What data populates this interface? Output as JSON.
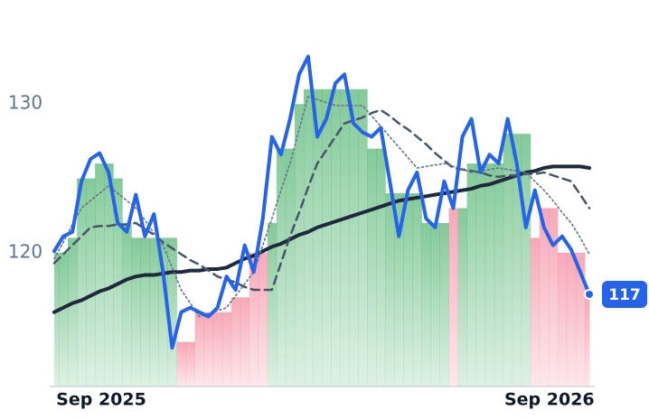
{
  "chart_data": {
    "type": "line",
    "categories": [
      "Sep 2025",
      null,
      null,
      null,
      null,
      null,
      null,
      null,
      null,
      null,
      null,
      null,
      null,
      null,
      null,
      null,
      null,
      null,
      null,
      null,
      null,
      null,
      null,
      null,
      null,
      null,
      null,
      null,
      null,
      null,
      null,
      null,
      null,
      null,
      null,
      null,
      null,
      null,
      null,
      null,
      null,
      null,
      null,
      null,
      null,
      null,
      null,
      null,
      null,
      null,
      null,
      null,
      null,
      null,
      "Sep 2026",
      null,
      null,
      null,
      null,
      null
    ],
    "ylim": [
      111,
      137
    ],
    "yticks": [
      120,
      130
    ],
    "bars": [
      {
        "color": "#5bb878",
        "values": [
          120,
          120,
          121,
          125,
          125,
          126,
          126,
          125,
          122,
          121,
          121,
          121,
          121,
          121,
          null,
          null,
          null,
          null,
          null,
          null,
          null,
          null,
          null,
          null,
          122,
          127,
          127,
          130,
          131,
          131,
          131,
          131,
          131,
          131,
          131,
          127,
          127,
          124,
          124,
          124,
          124,
          122,
          122,
          122,
          null,
          123,
          126,
          126,
          126,
          126,
          128,
          128,
          128,
          null,
          null,
          null,
          null,
          null,
          null,
          null
        ]
      },
      {
        "color": "#f48ca0",
        "values": [
          null,
          null,
          null,
          null,
          null,
          null,
          null,
          null,
          null,
          null,
          null,
          null,
          null,
          null,
          114,
          114,
          116,
          116,
          116,
          116,
          117,
          117,
          120,
          120,
          null,
          null,
          null,
          null,
          null,
          null,
          null,
          null,
          null,
          null,
          null,
          null,
          null,
          null,
          null,
          null,
          null,
          null,
          null,
          null,
          123,
          null,
          null,
          null,
          null,
          null,
          null,
          null,
          null,
          121,
          123,
          123,
          120,
          120,
          120,
          117
        ]
      }
    ],
    "series": [
      {
        "color": "#1e293b",
        "style": "solid",
        "width": 4,
        "values": [
          116.0,
          116.3,
          116.6,
          116.8,
          117.1,
          117.4,
          117.6,
          117.9,
          118.2,
          118.4,
          118.5,
          118.5,
          118.6,
          118.7,
          118.7,
          118.8,
          118.8,
          118.9,
          118.9,
          119.0,
          119.3,
          119.6,
          119.8,
          120.1,
          120.4,
          120.6,
          120.9,
          121.2,
          121.4,
          121.7,
          121.9,
          122.1,
          122.3,
          122.5,
          122.7,
          122.9,
          123.1,
          123.3,
          123.5,
          123.6,
          123.7,
          123.8,
          123.9,
          124.0,
          124.1,
          124.2,
          124.3,
          124.5,
          124.6,
          124.8,
          125.0,
          125.2,
          125.4,
          125.5,
          125.7,
          125.8,
          125.8,
          125.8,
          125.8,
          125.7
        ]
      },
      {
        "color": "#475569",
        "style": "dashed",
        "width": 2.5,
        "values": [
          119.3,
          119.9,
          120.5,
          121.1,
          121.7,
          121.8,
          121.8,
          121.9,
          121.9,
          122.0,
          121.6,
          121.2,
          120.7,
          120.3,
          119.9,
          119.5,
          119.2,
          118.8,
          118.4,
          118.2,
          118.0,
          117.7,
          117.5,
          117.5,
          117.5,
          119.3,
          121.1,
          122.7,
          124.4,
          126.0,
          126.9,
          127.8,
          128.7,
          128.9,
          129.1,
          129.4,
          129.6,
          129.2,
          128.7,
          128.3,
          127.8,
          127.3,
          126.7,
          126.2,
          125.7,
          125.6,
          125.5,
          125.4,
          125.2,
          125.1,
          125.2,
          125.2,
          125.3,
          125.3,
          125.4,
          125.2,
          125.0,
          124.8,
          123.9,
          123.0
        ]
      },
      {
        "color": "#64748b",
        "style": "dotted",
        "width": 1.6,
        "values": [
          119.6,
          120.7,
          121.9,
          123.0,
          123.5,
          124.0,
          124.5,
          124.0,
          123.5,
          123.0,
          122.2,
          121.3,
          120.5,
          119.0,
          117.5,
          116.6,
          115.7,
          115.9,
          116.1,
          116.3,
          117.1,
          117.9,
          118.7,
          120.5,
          122.3,
          124.2,
          126.0,
          128.3,
          130.5,
          130.3,
          130.1,
          129.9,
          129.9,
          129.9,
          129.9,
          129.2,
          128.5,
          127.8,
          127.1,
          126.4,
          125.7,
          125.8,
          125.9,
          126.0,
          125.8,
          125.6,
          125.4,
          125.5,
          125.6,
          125.7,
          125.6,
          125.5,
          125.4,
          124.8,
          124.2,
          123.5,
          122.7,
          122.0,
          121.0,
          119.9
        ]
      },
      {
        "color": "#2563eb",
        "style": "solid",
        "width": 4,
        "values": [
          120.1,
          121.1,
          121.4,
          124.8,
          126.3,
          126.7,
          125.4,
          122.0,
          121.4,
          123.9,
          121.1,
          122.6,
          118.7,
          113.6,
          116.0,
          116.3,
          116.0,
          115.7,
          116.3,
          118.4,
          117.5,
          120.5,
          118.7,
          122.3,
          127.8,
          126.6,
          129.0,
          132.0,
          133.2,
          127.8,
          129.0,
          131.4,
          132.0,
          128.7,
          128.1,
          127.8,
          128.4,
          124.8,
          121.1,
          124.2,
          125.4,
          122.3,
          121.7,
          124.8,
          123.0,
          127.8,
          129.0,
          125.4,
          126.6,
          126.0,
          129.0,
          126.0,
          121.7,
          124.2,
          121.7,
          120.5,
          121.1,
          120.2,
          118.7,
          117.2
        ],
        "value_labels": [
          null,
          null,
          null,
          null,
          null,
          null,
          null,
          null,
          null,
          null,
          null,
          null,
          null,
          null,
          null,
          null,
          null,
          null,
          null,
          null,
          null,
          null,
          null,
          null,
          null,
          null,
          null,
          null,
          null,
          null,
          null,
          null,
          null,
          null,
          null,
          null,
          null,
          null,
          null,
          null,
          null,
          null,
          null,
          null,
          null,
          null,
          null,
          null,
          null,
          null,
          null,
          null,
          null,
          null,
          null,
          null,
          null,
          null,
          null,
          "117"
        ]
      }
    ]
  }
}
